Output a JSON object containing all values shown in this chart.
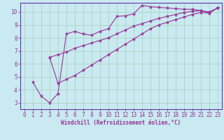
{
  "background_color": "#c8eaf0",
  "grid_color": "#aaccbb",
  "line_color": "#993399",
  "spine_color": "#6633aa",
  "xlabel": "Windchill (Refroidissement éolien,°C)",
  "xlim": [
    -0.5,
    23.5
  ],
  "ylim": [
    2.5,
    10.7
  ],
  "xticks": [
    0,
    1,
    2,
    3,
    4,
    5,
    6,
    7,
    8,
    9,
    10,
    11,
    12,
    13,
    14,
    15,
    16,
    17,
    18,
    19,
    20,
    21,
    22,
    23
  ],
  "yticks": [
    3,
    4,
    5,
    6,
    7,
    8,
    9,
    10
  ],
  "line1_x": [
    1,
    2,
    3,
    4,
    5,
    6,
    7,
    8,
    9,
    10,
    11,
    12,
    13,
    14,
    15,
    16,
    17,
    18,
    19,
    20,
    21,
    22,
    23
  ],
  "line1_y": [
    4.6,
    3.5,
    3.0,
    3.7,
    8.3,
    8.5,
    8.3,
    8.2,
    8.5,
    8.7,
    9.65,
    9.7,
    9.85,
    10.5,
    10.4,
    10.35,
    10.3,
    10.25,
    10.2,
    10.2,
    10.1,
    10.0,
    10.3
  ],
  "line2_x": [
    3,
    4,
    5,
    6,
    7,
    8,
    9,
    10,
    11,
    12,
    13,
    14,
    15,
    16,
    17,
    18,
    19,
    20,
    21,
    22,
    23
  ],
  "line2_y": [
    6.5,
    6.7,
    6.9,
    7.2,
    7.4,
    7.6,
    7.8,
    8.0,
    8.3,
    8.6,
    8.9,
    9.1,
    9.3,
    9.5,
    9.65,
    9.8,
    9.95,
    10.05,
    10.1,
    9.95,
    10.3
  ],
  "line3_x": [
    3,
    4,
    5,
    6,
    7,
    8,
    9,
    10,
    11,
    12,
    13,
    14,
    15,
    16,
    17,
    18,
    19,
    20,
    21,
    22,
    23
  ],
  "line3_y": [
    6.5,
    4.5,
    4.8,
    5.1,
    5.5,
    5.9,
    6.3,
    6.7,
    7.1,
    7.5,
    7.9,
    8.3,
    8.7,
    9.0,
    9.2,
    9.4,
    9.6,
    9.8,
    9.95,
    9.9,
    10.3
  ],
  "tick_fontsize": 5.5,
  "xlabel_fontsize": 5.5,
  "linewidth": 0.8,
  "markersize": 3.5
}
